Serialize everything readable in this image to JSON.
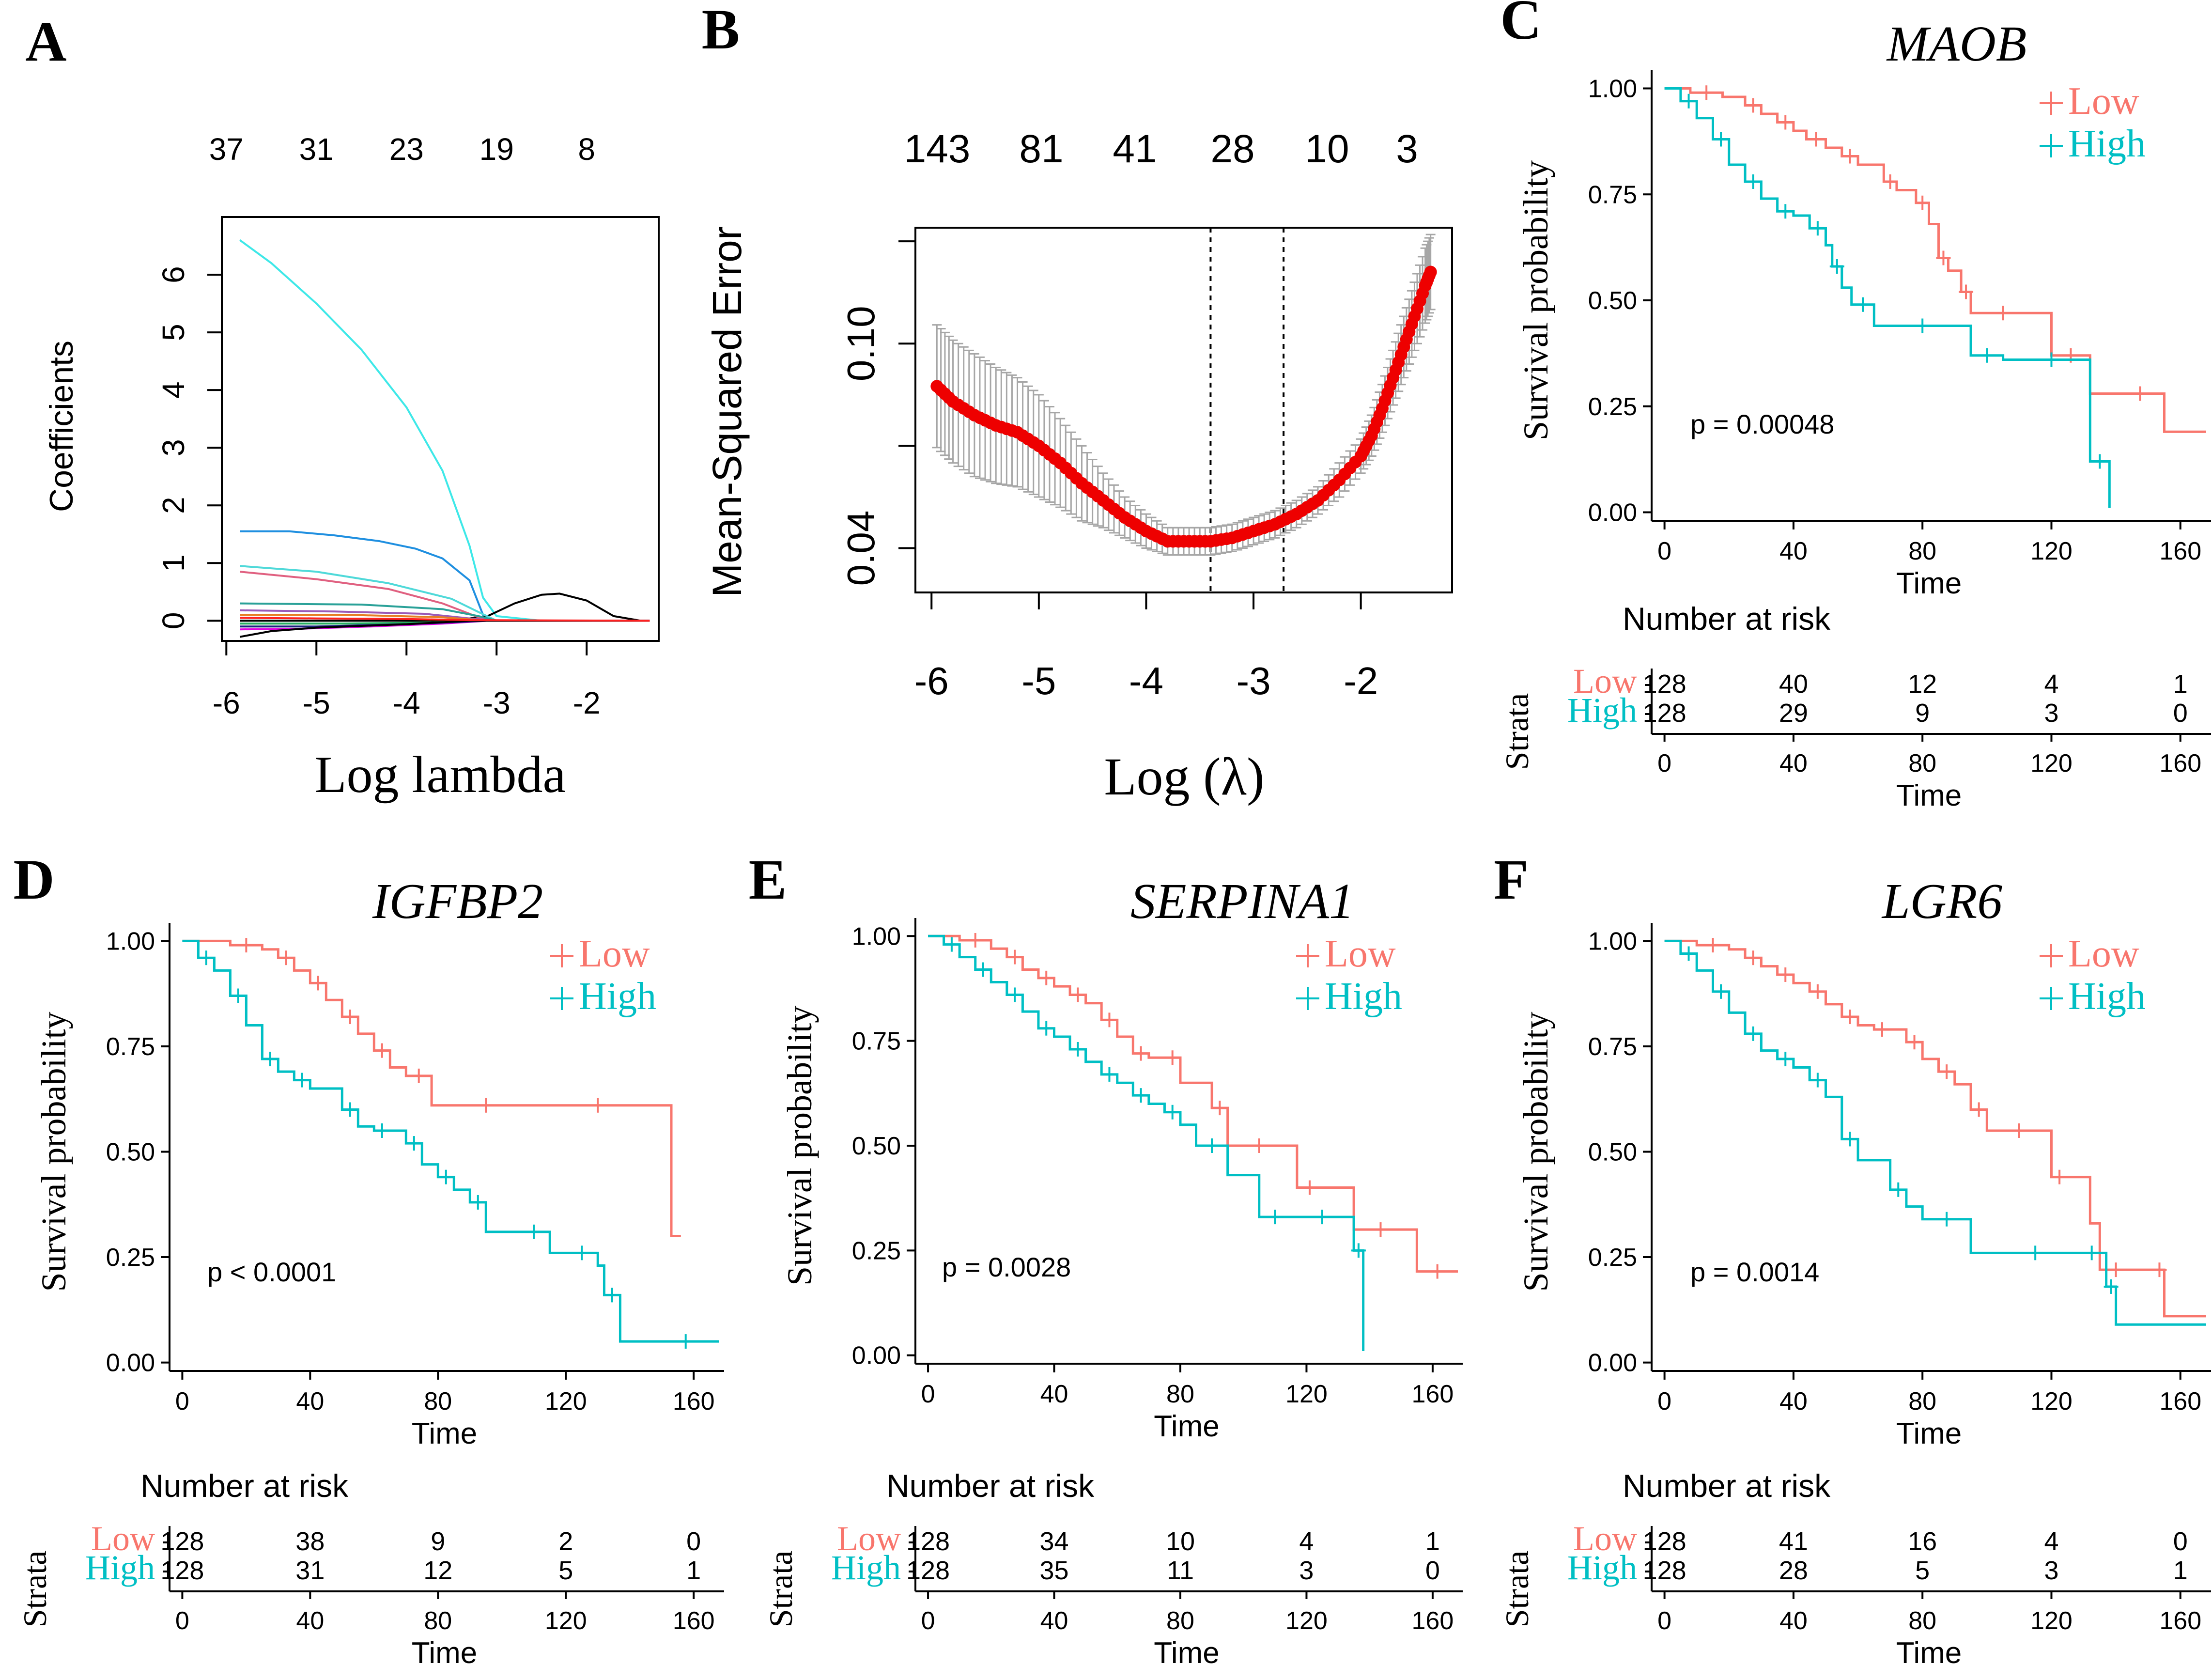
{
  "colors": {
    "low": "#f8766d",
    "high": "#00bfc4",
    "red": "#ee0000",
    "grey": "#a6a6a6"
  },
  "chart_data": [
    {
      "panel": "A",
      "type": "line",
      "xlabel": "Log lambda",
      "ylabel": "Coefficients",
      "xlim": [
        -6.05,
        -1.2
      ],
      "ylim": [
        -0.35,
        7.0
      ],
      "xticks": [
        -6,
        -5,
        -4,
        -3,
        -2
      ],
      "yticks": [
        0,
        1,
        2,
        3,
        4,
        5,
        6
      ],
      "top_axis_labels": [
        "37",
        "31",
        "23",
        "19",
        "8"
      ],
      "series": [
        {
          "name": "coef_cyan_large",
          "color": "#3ee8e8",
          "x": [
            -5.85,
            -5.5,
            -5,
            -4.5,
            -4,
            -3.6,
            -3.3,
            -3.15,
            -3.0,
            -2.5,
            -1.3
          ],
          "y": [
            6.6,
            6.2,
            5.5,
            4.7,
            3.7,
            2.6,
            1.3,
            0.4,
            0.08,
            0.0,
            0.0
          ]
        },
        {
          "name": "coef_blue",
          "color": "#1f8fe0",
          "x": [
            -5.85,
            -5.3,
            -4.8,
            -4.3,
            -3.9,
            -3.6,
            -3.3,
            -3.15,
            -3.0,
            -1.3
          ],
          "y": [
            1.55,
            1.55,
            1.48,
            1.38,
            1.25,
            1.08,
            0.7,
            0.1,
            0.0,
            0.0
          ]
        },
        {
          "name": "coef_black_hump",
          "color": "#000000",
          "x": [
            -5.85,
            -3.5,
            -3.1,
            -2.8,
            -2.5,
            -2.3,
            -2.0,
            -1.7,
            -1.4,
            -1.3
          ],
          "y": [
            0.0,
            0.0,
            0.08,
            0.3,
            0.45,
            0.47,
            0.35,
            0.08,
            0.0,
            0.0
          ]
        },
        {
          "name": "coef_cyan_small",
          "color": "#4fd9d9",
          "x": [
            -5.85,
            -5,
            -4.2,
            -3.5,
            -3.2,
            -3.0,
            -1.3
          ],
          "y": [
            0.95,
            0.85,
            0.65,
            0.38,
            0.15,
            0.0,
            0.0
          ]
        },
        {
          "name": "coef_pink",
          "color": "#e06080",
          "x": [
            -5.85,
            -5,
            -4.2,
            -3.6,
            -3.3,
            -3.1,
            -1.3
          ],
          "y": [
            0.85,
            0.72,
            0.55,
            0.3,
            0.12,
            0.0,
            0.0
          ]
        },
        {
          "name": "coef_teal",
          "color": "#2aa198",
          "x": [
            -5.85,
            -4.5,
            -3.6,
            -3.2,
            -3.0,
            -1.3
          ],
          "y": [
            0.3,
            0.28,
            0.2,
            0.08,
            0.0,
            0.0
          ]
        },
        {
          "name": "coef_purple",
          "color": "#9b59b6",
          "x": [
            -5.85,
            -4.8,
            -3.8,
            -3.3,
            -3.0,
            -1.3
          ],
          "y": [
            0.18,
            0.16,
            0.12,
            0.04,
            0.0,
            0.0
          ]
        },
        {
          "name": "coef_orange",
          "color": "#e67e22",
          "x": [
            -5.85,
            -4.6,
            -3.6,
            -3.1,
            -1.3
          ],
          "y": [
            0.1,
            0.1,
            0.06,
            0.0,
            0.0
          ]
        },
        {
          "name": "coef_green",
          "color": "#27ae60",
          "x": [
            -5.85,
            -4.7,
            -3.7,
            -3.2,
            -1.3
          ],
          "y": [
            -0.05,
            -0.05,
            -0.03,
            0.0,
            0.0
          ]
        },
        {
          "name": "coef_magenta",
          "color": "#e000e0",
          "x": [
            -5.85,
            -5.2,
            -4.4,
            -3.6,
            -3.1,
            -1.3
          ],
          "y": [
            -0.15,
            -0.14,
            -0.1,
            -0.05,
            0.0,
            0.0
          ]
        },
        {
          "name": "coef_navy",
          "color": "#1a237e",
          "x": [
            -5.85,
            -5.0,
            -4.0,
            -3.4,
            -3.1,
            -1.3
          ],
          "y": [
            -0.1,
            -0.1,
            -0.06,
            -0.02,
            0.0,
            0.0
          ]
        },
        {
          "name": "coef_black_low",
          "color": "#000000",
          "x": [
            -5.85,
            -5.5,
            -5.0,
            -4.0,
            -3.3,
            -1.3
          ],
          "y": [
            -0.28,
            -0.18,
            -0.12,
            -0.06,
            0.0,
            0.0
          ]
        },
        {
          "name": "coef_red",
          "color": "#ff2020",
          "x": [
            -5.85,
            -5.0,
            -4.0,
            -3.3,
            -1.3
          ],
          "y": [
            0.05,
            0.04,
            0.03,
            0.01,
            0.0
          ]
        }
      ]
    },
    {
      "panel": "B",
      "type": "scatter",
      "xlabel": "Log (λ)",
      "ylabel": "Mean-Squared Error",
      "xlim": [
        -6.15,
        -1.15
      ],
      "ylim": [
        0.027,
        0.134
      ],
      "xticks": [
        -6,
        -5,
        -4,
        -3,
        -2
      ],
      "yticks": [
        0.04,
        0.1
      ],
      "top_axis_labels": [
        "143",
        "81",
        "41",
        "28",
        "10",
        "3"
      ],
      "vlines": [
        -3.4,
        -2.72
      ],
      "points": {
        "x": [
          -5.95,
          -5.8,
          -5.6,
          -5.4,
          -5.2,
          -5.0,
          -4.8,
          -4.6,
          -4.4,
          -4.2,
          -4.0,
          -3.8,
          -3.6,
          -3.4,
          -3.2,
          -3.0,
          -2.8,
          -2.6,
          -2.4,
          -2.2,
          -2.0,
          -1.9,
          -1.8,
          -1.7,
          -1.6,
          -1.5,
          -1.4,
          -1.35
        ],
        "y": [
          0.0875,
          0.083,
          0.079,
          0.076,
          0.074,
          0.07,
          0.065,
          0.059,
          0.054,
          0.049,
          0.045,
          0.042,
          0.042,
          0.042,
          0.043,
          0.045,
          0.047,
          0.05,
          0.054,
          0.06,
          0.067,
          0.073,
          0.081,
          0.09,
          0.099,
          0.108,
          0.117,
          0.121
        ],
        "err": [
          0.018,
          0.018,
          0.018,
          0.017,
          0.016,
          0.015,
          0.013,
          0.011,
          0.008,
          0.006,
          0.005,
          0.004,
          0.004,
          0.004,
          0.004,
          0.004,
          0.004,
          0.004,
          0.004,
          0.005,
          0.005,
          0.006,
          0.007,
          0.008,
          0.009,
          0.01,
          0.011,
          0.011
        ]
      }
    },
    {
      "panel": "C",
      "type": "line",
      "title": "MAOB",
      "pvalue": "p = 0.00048",
      "xlabel": "Time",
      "ylabel": "Survival probability",
      "xlim": [
        -4,
        168
      ],
      "ylim": [
        -0.02,
        1.02
      ],
      "xticks": [
        0,
        40,
        80,
        120,
        160
      ],
      "yticks": [
        "0.00",
        "0.25",
        "0.50",
        "0.75",
        "1.00"
      ],
      "legend": [
        "Low",
        "High"
      ],
      "series": [
        {
          "name": "Low",
          "x": [
            0,
            8,
            18,
            25,
            30,
            35,
            40,
            44,
            50,
            55,
            60,
            68,
            72,
            78,
            82,
            85,
            88,
            92,
            95,
            100,
            110,
            120,
            132,
            140,
            155,
            168
          ],
          "y": [
            1.0,
            0.99,
            0.98,
            0.96,
            0.94,
            0.92,
            0.9,
            0.88,
            0.86,
            0.84,
            0.82,
            0.78,
            0.76,
            0.73,
            0.68,
            0.6,
            0.57,
            0.52,
            0.47,
            0.47,
            0.47,
            0.37,
            0.28,
            0.28,
            0.19,
            0.19
          ]
        },
        {
          "name": "High",
          "x": [
            0,
            5,
            10,
            15,
            20,
            25,
            30,
            35,
            40,
            45,
            50,
            52,
            55,
            58,
            65,
            75,
            85,
            95,
            105,
            115,
            125,
            132,
            138,
            138
          ],
          "y": [
            1.0,
            0.97,
            0.93,
            0.88,
            0.82,
            0.78,
            0.74,
            0.71,
            0.7,
            0.67,
            0.63,
            0.58,
            0.53,
            0.49,
            0.44,
            0.44,
            0.44,
            0.37,
            0.36,
            0.36,
            0.36,
            0.12,
            0.12,
            0.01
          ]
        }
      ],
      "risk_table": {
        "title": "Number at risk",
        "strata_label": "Strata",
        "times": [
          0,
          40,
          80,
          120,
          160
        ],
        "low": [
          "128",
          "40",
          "12",
          "4",
          "1"
        ],
        "high": [
          "128",
          "29",
          "9",
          "3",
          "0"
        ]
      }
    },
    {
      "panel": "D",
      "type": "line",
      "title": "IGFBP2",
      "pvalue": "p < 0.0001",
      "xlabel": "Time",
      "ylabel": "Survival probability",
      "xlim": [
        -4,
        168
      ],
      "ylim": [
        -0.02,
        1.02
      ],
      "xticks": [
        0,
        40,
        80,
        120,
        160
      ],
      "yticks": [
        "0.00",
        "0.25",
        "0.50",
        "0.75",
        "1.00"
      ],
      "legend": [
        "Low",
        "High"
      ],
      "series": [
        {
          "name": "Low",
          "x": [
            0,
            15,
            25,
            30,
            35,
            40,
            45,
            50,
            55,
            60,
            65,
            70,
            78,
            90,
            100,
            120,
            140,
            153,
            153,
            156
          ],
          "y": [
            1.0,
            0.99,
            0.98,
            0.96,
            0.93,
            0.9,
            0.86,
            0.82,
            0.78,
            0.74,
            0.7,
            0.68,
            0.61,
            0.61,
            0.61,
            0.61,
            0.61,
            0.61,
            0.3,
            0.3
          ]
        },
        {
          "name": "High",
          "x": [
            0,
            5,
            10,
            15,
            20,
            25,
            30,
            35,
            40,
            50,
            55,
            60,
            65,
            70,
            75,
            80,
            85,
            90,
            95,
            105,
            115,
            120,
            130,
            132,
            137,
            147,
            168
          ],
          "y": [
            1.0,
            0.96,
            0.93,
            0.87,
            0.8,
            0.72,
            0.69,
            0.67,
            0.65,
            0.6,
            0.56,
            0.55,
            0.55,
            0.52,
            0.47,
            0.44,
            0.41,
            0.38,
            0.31,
            0.31,
            0.26,
            0.26,
            0.23,
            0.16,
            0.05,
            0.05,
            0.05
          ]
        }
      ],
      "risk_table": {
        "title": "Number at risk",
        "strata_label": "Strata",
        "times": [
          0,
          40,
          80,
          120,
          160
        ],
        "low": [
          "128",
          "38",
          "9",
          "2",
          "0"
        ],
        "high": [
          "128",
          "31",
          "12",
          "5",
          "1"
        ]
      }
    },
    {
      "panel": "E",
      "type": "line",
      "title": "SERPINA1",
      "pvalue": "p = 0.0028",
      "xlabel": "Time",
      "ylabel": "Survival probability",
      "xlim": [
        -4,
        168
      ],
      "ylim": [
        -0.02,
        1.02
      ],
      "xticks": [
        0,
        40,
        80,
        120,
        160
      ],
      "yticks": [
        "0.00",
        "0.25",
        "0.50",
        "0.75",
        "1.00"
      ],
      "legend": [
        "Low",
        "High"
      ],
      "series": [
        {
          "name": "Low",
          "x": [
            0,
            10,
            20,
            25,
            30,
            35,
            40,
            45,
            50,
            55,
            60,
            65,
            70,
            75,
            80,
            90,
            95,
            100,
            110,
            117,
            125,
            135,
            152,
            155,
            168
          ],
          "y": [
            1.0,
            0.99,
            0.97,
            0.95,
            0.92,
            0.9,
            0.88,
            0.86,
            0.84,
            0.8,
            0.76,
            0.72,
            0.71,
            0.71,
            0.65,
            0.59,
            0.5,
            0.5,
            0.5,
            0.4,
            0.4,
            0.3,
            0.3,
            0.2,
            0.2
          ]
        },
        {
          "name": "High",
          "x": [
            0,
            5,
            10,
            15,
            20,
            25,
            30,
            35,
            40,
            45,
            50,
            55,
            60,
            65,
            70,
            75,
            80,
            85,
            95,
            105,
            115,
            120,
            130,
            135,
            138,
            138
          ],
          "y": [
            1.0,
            0.98,
            0.95,
            0.92,
            0.89,
            0.86,
            0.82,
            0.78,
            0.76,
            0.73,
            0.7,
            0.67,
            0.65,
            0.62,
            0.6,
            0.58,
            0.55,
            0.5,
            0.43,
            0.33,
            0.33,
            0.33,
            0.33,
            0.25,
            0.15,
            0.01
          ]
        }
      ],
      "risk_table": {
        "title": "Number at risk",
        "strata_label": "Strata",
        "times": [
          0,
          40,
          80,
          120,
          160
        ],
        "low": [
          "128",
          "34",
          "10",
          "4",
          "1"
        ],
        "high": [
          "128",
          "35",
          "11",
          "3",
          "0"
        ]
      }
    },
    {
      "panel": "F",
      "type": "line",
      "title": "LGR6",
      "pvalue": "p = 0.0014",
      "xlabel": "Time",
      "ylabel": "Survival probability",
      "xlim": [
        -4,
        168
      ],
      "ylim": [
        -0.02,
        1.02
      ],
      "xticks": [
        0,
        40,
        80,
        120,
        160
      ],
      "yticks": [
        "0.00",
        "0.25",
        "0.50",
        "0.75",
        "1.00"
      ],
      "legend": [
        "Low",
        "High"
      ],
      "series": [
        {
          "name": "Low",
          "x": [
            0,
            10,
            20,
            25,
            30,
            35,
            40,
            45,
            50,
            55,
            60,
            65,
            70,
            75,
            80,
            85,
            90,
            95,
            100,
            105,
            115,
            120,
            125,
            130,
            132,
            135,
            145,
            152,
            155,
            168
          ],
          "y": [
            1.0,
            0.99,
            0.98,
            0.96,
            0.94,
            0.92,
            0.9,
            0.88,
            0.85,
            0.82,
            0.8,
            0.79,
            0.79,
            0.76,
            0.72,
            0.69,
            0.66,
            0.6,
            0.55,
            0.55,
            0.55,
            0.44,
            0.44,
            0.44,
            0.33,
            0.22,
            0.22,
            0.22,
            0.11,
            0.11
          ]
        },
        {
          "name": "High",
          "x": [
            0,
            5,
            10,
            15,
            20,
            25,
            30,
            35,
            40,
            45,
            50,
            55,
            60,
            70,
            75,
            80,
            95,
            110,
            120,
            130,
            135,
            137,
            140,
            168
          ],
          "y": [
            1.0,
            0.97,
            0.93,
            0.88,
            0.83,
            0.78,
            0.74,
            0.72,
            0.7,
            0.67,
            0.63,
            0.53,
            0.48,
            0.41,
            0.37,
            0.34,
            0.26,
            0.26,
            0.26,
            0.26,
            0.26,
            0.18,
            0.09,
            0.09
          ]
        }
      ],
      "risk_table": {
        "title": "Number at risk",
        "strata_label": "Strata",
        "times": [
          0,
          40,
          80,
          120,
          160
        ],
        "low": [
          "128",
          "41",
          "16",
          "4",
          "0"
        ],
        "high": [
          "128",
          "28",
          "5",
          "3",
          "1"
        ]
      }
    }
  ]
}
